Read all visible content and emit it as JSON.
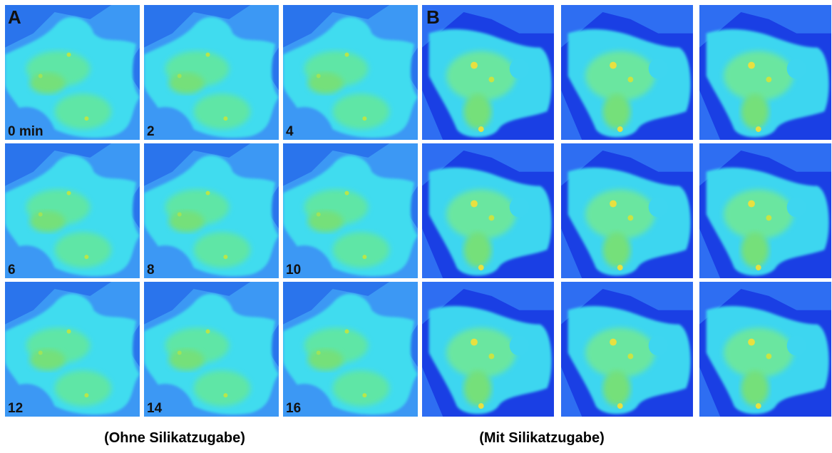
{
  "panel_a": {
    "label": "A",
    "time_labels": [
      "0 min",
      "2",
      "4",
      "6",
      "8",
      "10",
      "12",
      "14",
      "16"
    ],
    "caption": "(Ohne Silikatzugabe)"
  },
  "panel_b": {
    "label": "B",
    "caption": "(Mit Silikatzugabe)"
  }
}
